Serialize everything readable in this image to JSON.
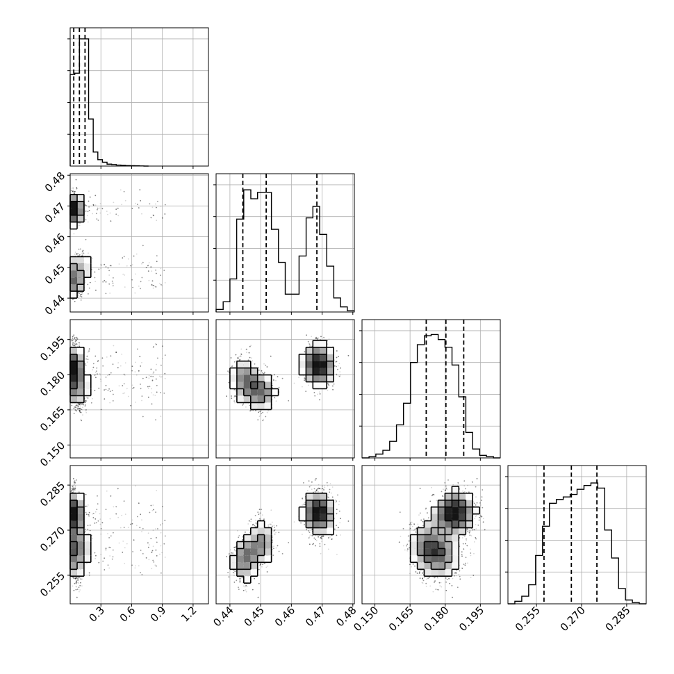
{
  "chart_data": {
    "type": "corner",
    "description_free": true,
    "grid": true,
    "parameters": [
      {
        "range": [
          0.0,
          1.35
        ],
        "ticks": [
          0.3,
          0.6,
          0.9,
          1.2
        ],
        "tick_labels": [
          "0.3",
          "0.6",
          "0.9",
          "1.2"
        ],
        "quantiles": [
          0.035,
          0.09,
          0.145
        ],
        "hist_x": [
          0.0,
          0.045,
          0.09,
          0.135,
          0.18,
          0.225,
          0.27,
          0.315,
          0.36,
          0.405,
          0.45,
          0.495,
          0.54,
          0.585,
          0.63,
          0.675,
          0.72,
          0.765
        ],
        "hist_y": [
          0.72,
          0.73,
          1.0,
          1.0,
          0.37,
          0.11,
          0.05,
          0.03,
          0.015,
          0.012,
          0.008,
          0.006,
          0.004,
          0.003,
          0.002,
          0.001,
          0.0
        ]
      },
      {
        "range": [
          0.4355,
          0.4805
        ],
        "ticks": [
          0.44,
          0.45,
          0.46,
          0.47,
          0.48
        ],
        "tick_labels": [
          "0.44",
          "0.45",
          "0.46",
          "0.47",
          "0.48"
        ],
        "quantiles": [
          0.4442,
          0.4518,
          0.4683
        ],
        "hist_x": [
          0.4355,
          0.4378,
          0.44,
          0.4422,
          0.4445,
          0.4468,
          0.449,
          0.4512,
          0.4535,
          0.4558,
          0.458,
          0.4602,
          0.4625,
          0.4648,
          0.467,
          0.4692,
          0.4715,
          0.4738,
          0.476,
          0.4782,
          0.4805
        ],
        "hist_y": [
          0.02,
          0.08,
          0.26,
          0.73,
          0.96,
          0.89,
          0.94,
          0.94,
          0.65,
          0.39,
          0.14,
          0.14,
          0.44,
          0.74,
          0.83,
          0.61,
          0.36,
          0.11,
          0.04,
          0.01
        ]
      },
      {
        "range": [
          0.1445,
          0.2035
        ],
        "ticks": [
          0.15,
          0.165,
          0.18,
          0.195
        ],
        "tick_labels": [
          "0.150",
          "0.165",
          "0.180",
          "0.195"
        ],
        "quantiles": [
          0.1719,
          0.1803,
          0.1879
        ],
        "hist_x": [
          0.1445,
          0.1475,
          0.1504,
          0.1534,
          0.1563,
          0.1592,
          0.1622,
          0.1652,
          0.1681,
          0.1711,
          0.174,
          0.177,
          0.1799,
          0.1829,
          0.1858,
          0.1888,
          0.1917,
          0.1947,
          0.1976,
          0.2006,
          0.2035
        ],
        "hist_y": [
          0.0,
          0.01,
          0.03,
          0.06,
          0.13,
          0.26,
          0.43,
          0.75,
          0.89,
          0.96,
          0.97,
          0.93,
          0.87,
          0.73,
          0.48,
          0.2,
          0.07,
          0.02,
          0.01,
          0.0
        ]
      },
      {
        "range": [
          0.2455,
          0.2915
        ],
        "ticks": [
          0.255,
          0.27,
          0.285
        ],
        "tick_labels": [
          "0.255",
          "0.270",
          "0.285"
        ],
        "quantiles": [
          0.2575,
          0.2666,
          0.2751
        ],
        "hist_x": [
          0.2455,
          0.2478,
          0.2501,
          0.2524,
          0.2547,
          0.257,
          0.2593,
          0.2616,
          0.2639,
          0.2662,
          0.2685,
          0.2708,
          0.2731,
          0.2754,
          0.2777,
          0.28,
          0.2823,
          0.2846,
          0.2869,
          0.2892,
          0.2915
        ],
        "hist_y": [
          0.0,
          0.02,
          0.06,
          0.15,
          0.38,
          0.61,
          0.79,
          0.82,
          0.84,
          0.86,
          0.9,
          0.93,
          0.95,
          0.91,
          0.58,
          0.36,
          0.12,
          0.03,
          0.01,
          0.0
        ]
      }
    ]
  }
}
